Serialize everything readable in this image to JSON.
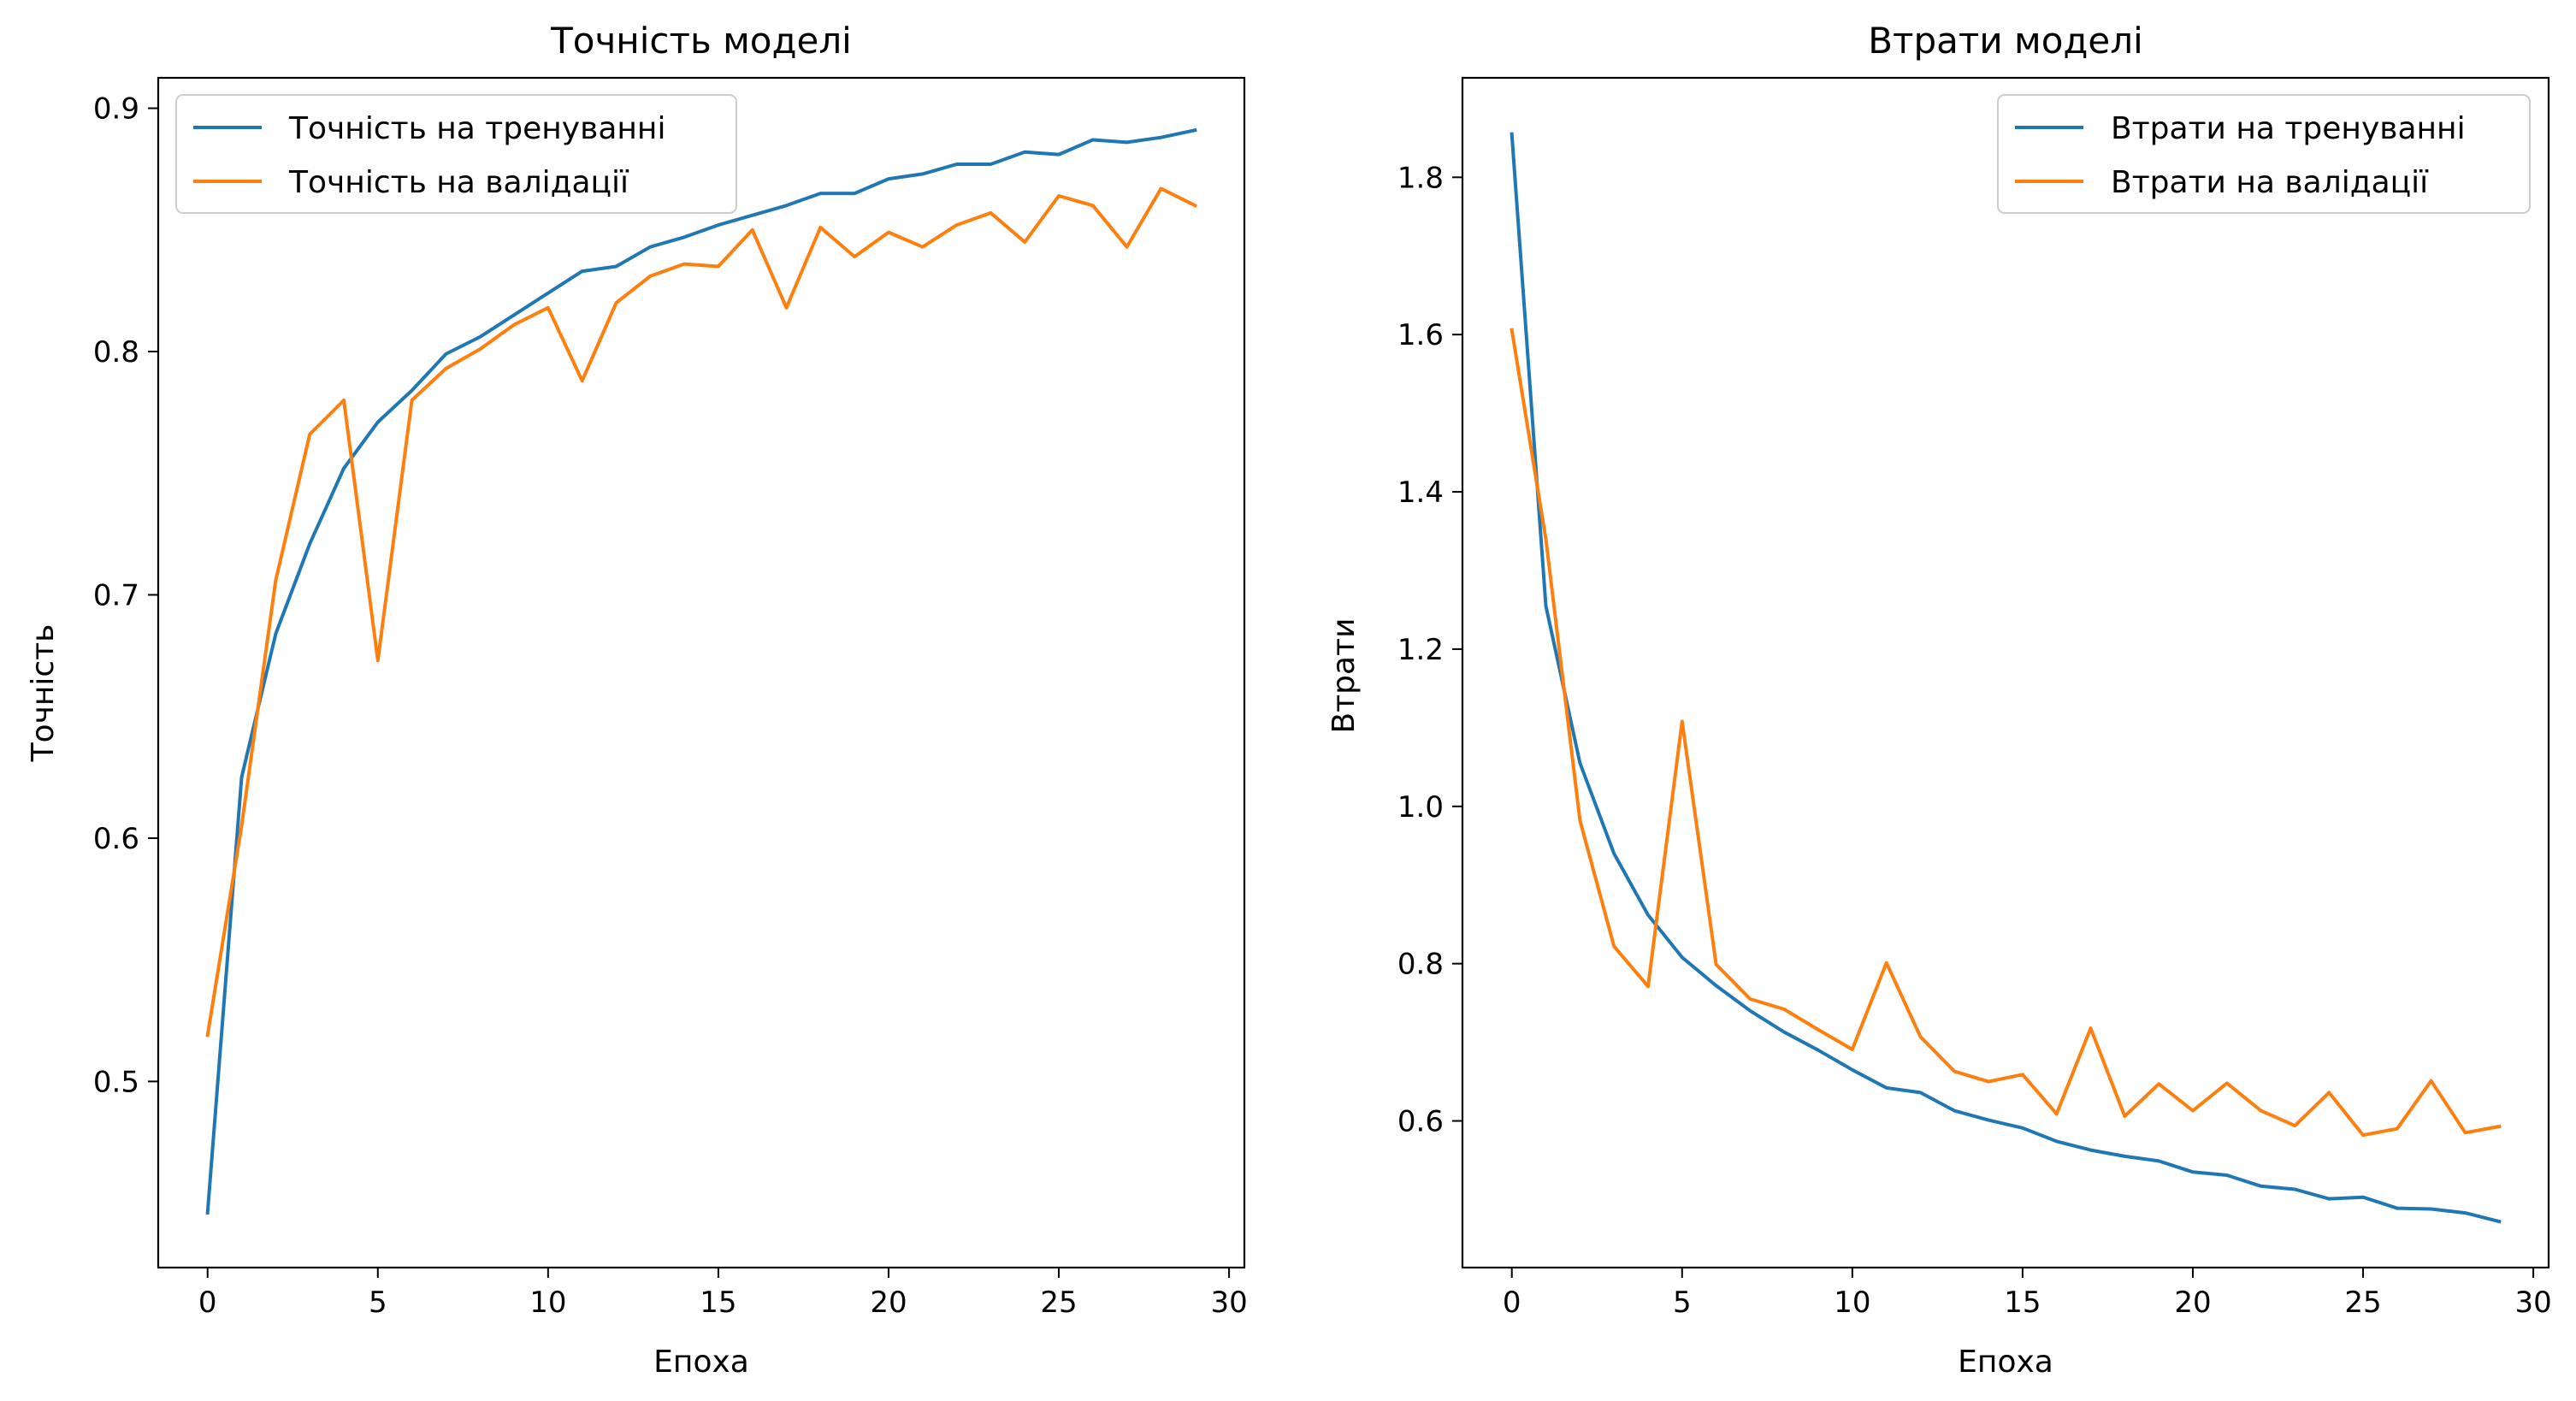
{
  "colors": {
    "train": "#1f77b4",
    "val": "#ff7f0e",
    "axes": "#000000",
    "background": "#ffffff"
  },
  "chart_data": [
    {
      "type": "line",
      "title": "Точність моделі",
      "xlabel": "Епоха",
      "ylabel": "Точність",
      "xlim": [
        -1.45,
        30.45
      ],
      "ylim": [
        0.4235,
        0.9125
      ],
      "xticks": [
        0,
        5,
        10,
        15,
        20,
        25,
        30
      ],
      "yticks": [
        0.5,
        0.6,
        0.7,
        0.8,
        0.9
      ],
      "ytick_labels": [
        "0.5",
        "0.6",
        "0.7",
        "0.8",
        "0.9"
      ],
      "legend_position": "upper-left",
      "grid": false,
      "x": [
        0,
        1,
        2,
        3,
        4,
        5,
        6,
        7,
        8,
        9,
        10,
        11,
        12,
        13,
        14,
        15,
        16,
        17,
        18,
        19,
        20,
        21,
        22,
        23,
        24,
        25,
        26,
        27,
        28,
        29
      ],
      "series": [
        {
          "name": "Точність на тренуванні",
          "color_key": "train",
          "values": [
            0.446,
            0.625,
            0.684,
            0.721,
            0.752,
            0.771,
            0.784,
            0.799,
            0.806,
            0.815,
            0.824,
            0.833,
            0.835,
            0.843,
            0.847,
            0.852,
            0.856,
            0.86,
            0.865,
            0.865,
            0.871,
            0.873,
            0.877,
            0.877,
            0.882,
            0.881,
            0.887,
            0.886,
            0.888,
            0.891
          ]
        },
        {
          "name": "Точність на валідації",
          "color_key": "val",
          "values": [
            0.519,
            0.605,
            0.706,
            0.766,
            0.78,
            0.673,
            0.78,
            0.793,
            0.801,
            0.811,
            0.818,
            0.788,
            0.82,
            0.831,
            0.836,
            0.835,
            0.85,
            0.818,
            0.851,
            0.839,
            0.849,
            0.843,
            0.852,
            0.857,
            0.845,
            0.864,
            0.86,
            0.843,
            0.867,
            0.86
          ]
        }
      ]
    },
    {
      "type": "line",
      "title": "Втрати моделі",
      "xlabel": "Епоха",
      "ylabel": "Втрати",
      "xlim": [
        -1.45,
        30.45
      ],
      "ylim": [
        0.4135,
        1.9265
      ],
      "xticks": [
        0,
        5,
        10,
        15,
        20,
        25,
        30
      ],
      "yticks": [
        0.6,
        0.8,
        1.0,
        1.2,
        1.4,
        1.6,
        1.8
      ],
      "ytick_labels": [
        "0.6",
        "0.8",
        "1.0",
        "1.2",
        "1.4",
        "1.6",
        "1.8"
      ],
      "legend_position": "upper-right",
      "grid": false,
      "x": [
        0,
        1,
        2,
        3,
        4,
        5,
        6,
        7,
        8,
        9,
        10,
        11,
        12,
        13,
        14,
        15,
        16,
        17,
        18,
        19,
        20,
        21,
        22,
        23,
        24,
        25,
        26,
        27,
        28,
        29
      ],
      "series": [
        {
          "name": "Втрати на тренуванні",
          "color_key": "train",
          "values": [
            1.855,
            1.255,
            1.055,
            0.94,
            0.862,
            0.808,
            0.772,
            0.74,
            0.713,
            0.69,
            0.665,
            0.642,
            0.636,
            0.613,
            0.601,
            0.591,
            0.574,
            0.563,
            0.555,
            0.549,
            0.535,
            0.531,
            0.517,
            0.513,
            0.501,
            0.503,
            0.489,
            0.488,
            0.483,
            0.472
          ]
        },
        {
          "name": "Втрати на валідації",
          "color_key": "val",
          "values": [
            1.606,
            1.34,
            0.982,
            0.822,
            0.771,
            1.108,
            0.799,
            0.755,
            0.742,
            0.716,
            0.691,
            0.801,
            0.707,
            0.663,
            0.65,
            0.659,
            0.609,
            0.718,
            0.606,
            0.647,
            0.613,
            0.648,
            0.613,
            0.594,
            0.636,
            0.582,
            0.59,
            0.651,
            0.585,
            0.593
          ]
        }
      ]
    }
  ]
}
